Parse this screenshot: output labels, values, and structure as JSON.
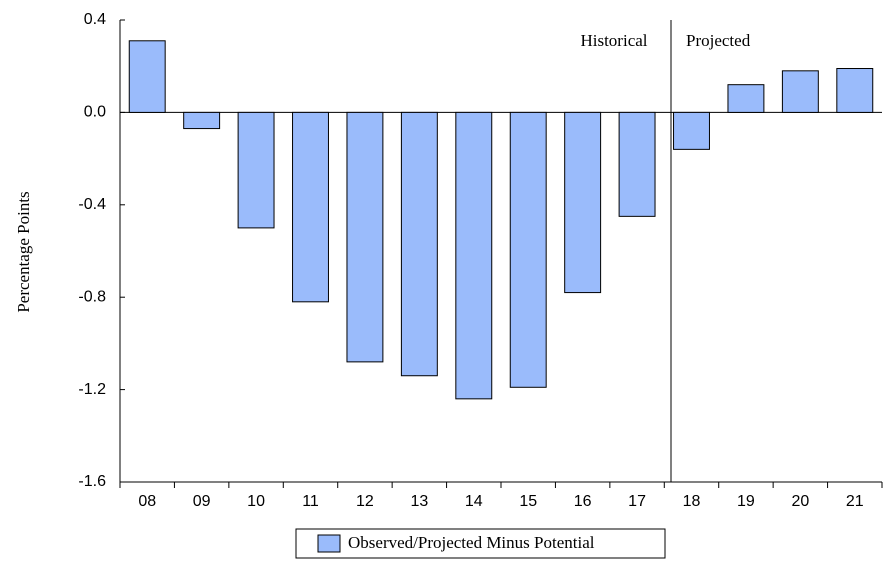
{
  "chart_data": {
    "type": "bar",
    "ylabel": "Percentage Points",
    "annotations": [
      "Historical",
      "Projected"
    ],
    "categories": [
      "08",
      "09",
      "10",
      "11",
      "12",
      "13",
      "14",
      "15",
      "16",
      "17",
      "18",
      "19",
      "20",
      "21"
    ],
    "series": [
      {
        "name": "Observed/Projected Minus Potential",
        "color": "#9abbfb",
        "values": [
          0.31,
          -0.07,
          -0.5,
          -0.82,
          -1.08,
          -1.14,
          -1.24,
          -1.19,
          -0.78,
          -0.45,
          -0.16,
          0.12,
          0.18,
          0.19
        ]
      }
    ],
    "ylim": [
      -1.6,
      0.4
    ],
    "yticks": [
      -1.6,
      -1.2,
      -0.8,
      -0.4,
      {
        "value": 0,
        "label": "0.0"
      },
      0.4
    ],
    "zero_line": true,
    "legend": "bottom"
  }
}
